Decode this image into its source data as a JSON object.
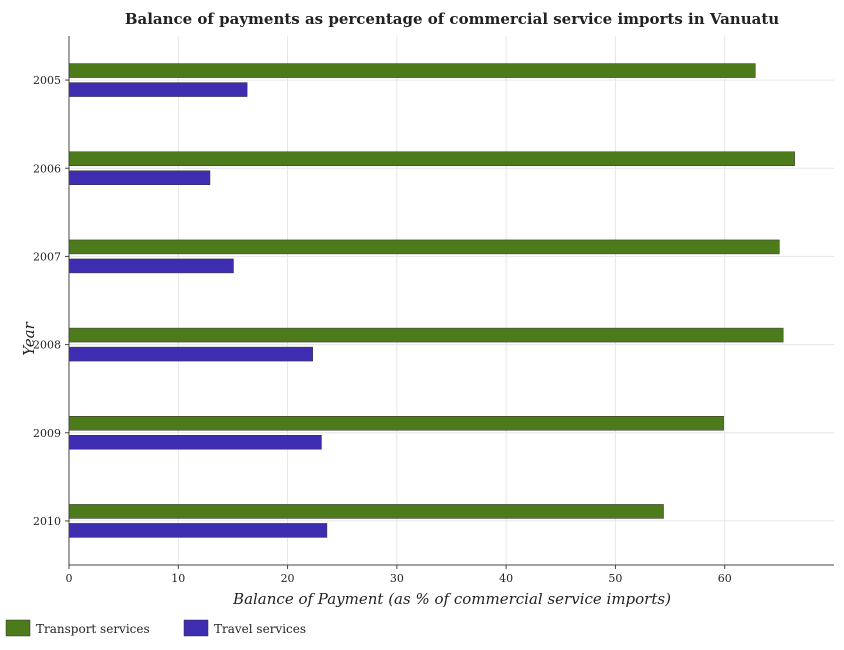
{
  "chart_data": {
    "type": "bar",
    "orientation": "horizontal",
    "title": "Balance of payments as percentage of commercial service imports in Vanuatu",
    "xlabel": "Balance of Payment (as % of commercial service imports)",
    "ylabel": "Year",
    "categories": [
      "2005",
      "2006",
      "2007",
      "2008",
      "2009",
      "2010"
    ],
    "xlim": [
      0,
      70
    ],
    "xticks": [
      0,
      10,
      20,
      30,
      40,
      50,
      60
    ],
    "grid": true,
    "legend_position": "bottom-left",
    "series": [
      {
        "name": "Transport services",
        "color": "#4d7a1b",
        "values": [
          62.8,
          66.4,
          65.0,
          65.35,
          59.9,
          54.4
        ]
      },
      {
        "name": "Travel services",
        "color": "#3d2db0",
        "values": [
          16.3,
          12.9,
          15.05,
          22.3,
          23.1,
          23.6
        ]
      }
    ]
  }
}
